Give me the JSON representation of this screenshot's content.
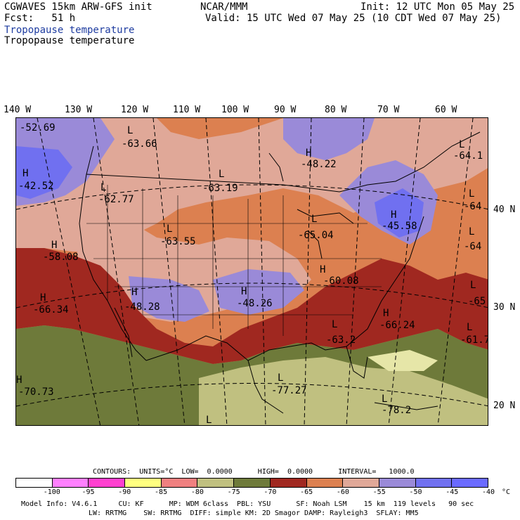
{
  "header": {
    "model": "CGWAVES 15km ARW-GFS init",
    "fcst": "Fcst:   51 h",
    "field_colored": "Tropopause temperature",
    "field_black": "Tropopause temperature",
    "org": "NCAR/MMM",
    "init": "Init: 12 UTC Mon 05 May 25",
    "valid": "Valid: 15 UTC Wed 07 May 25 (10 CDT Wed 07 May 25)"
  },
  "lon_labels": [
    "140 W",
    "130 W",
    "120 W",
    "110 W",
    "100 W",
    "90 W",
    "80 W",
    "70 W",
    "60 W"
  ],
  "lat_labels": [
    "40 N",
    "30 N",
    "20 N"
  ],
  "highs_lows": [
    {
      "sym": "",
      "val": "-52.69"
    },
    {
      "sym": "L",
      "val": "-63.66"
    },
    {
      "sym": "H",
      "val": "-48.22"
    },
    {
      "sym": "L",
      "val": "-64.1"
    },
    {
      "sym": "H",
      "val": "-42.52"
    },
    {
      "sym": "L",
      "val": "-62.77"
    },
    {
      "sym": "L",
      "val": "-63.19"
    },
    {
      "sym": "L",
      "val": "-64"
    },
    {
      "sym": "L",
      "val": "-63.55"
    },
    {
      "sym": "L",
      "val": "-65.04"
    },
    {
      "sym": "H",
      "val": "-45.58"
    },
    {
      "sym": "L",
      "val": "-64"
    },
    {
      "sym": "H",
      "val": "-58.08"
    },
    {
      "sym": "H",
      "val": "-60.08"
    },
    {
      "sym": "H",
      "val": "-66.34"
    },
    {
      "sym": "H",
      "val": "-48.28"
    },
    {
      "sym": "H",
      "val": "-48.26"
    },
    {
      "sym": "L",
      "val": "-65"
    },
    {
      "sym": "H",
      "val": "-66.24"
    },
    {
      "sym": "L",
      "val": "-63.2"
    },
    {
      "sym": "L",
      "val": "-61.7"
    },
    {
      "sym": "H",
      "val": "-70.73"
    },
    {
      "sym": "L",
      "val": "-77.27"
    },
    {
      "sym": "L",
      "val": "-78.2"
    },
    {
      "sym": "L",
      "val": ""
    }
  ],
  "contour_info": "CONTOURS:  UNITS=°C  LOW=  0.0000      HIGH=  0.0000      INTERVAL=   1000.0",
  "legend": {
    "colors": [
      "#ffffff",
      "#ff80ff",
      "#ff40d0",
      "#ffff80",
      "#f08080",
      "#c0c080",
      "#6e7a3a",
      "#a02820",
      "#dc8050",
      "#e0a898",
      "#9a8ad8",
      "#7070f0",
      "#6a6aff"
    ],
    "ticks": [
      "-100",
      "-95",
      "-90",
      "-85",
      "-80",
      "-75",
      "-70",
      "-65",
      "-60",
      "-55",
      "-50",
      "-45",
      "-40",
      "°C"
    ]
  },
  "footer": {
    "line1": "Model Info: V4.6.1     CU: KF      MP: WDM 6class  PBL: YSU      SF: Noah LSM    15 km  119 levels   90 sec",
    "line2": "LW: RRTMG    SW: RRTMG  DIFF: simple KM: 2D Smagor DAMP: Rayleigh3  SFLAY: MM5"
  }
}
